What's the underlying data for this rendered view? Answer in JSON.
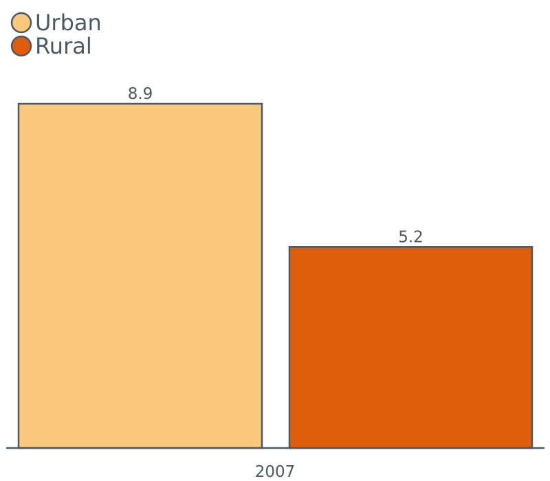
{
  "chart_data": {
    "type": "bar",
    "categories": [
      "2007"
    ],
    "series": [
      {
        "name": "Urban",
        "values": [
          8.9
        ],
        "color": "#fbc97c"
      },
      {
        "name": "Rural",
        "values": [
          5.2
        ],
        "color": "#de5d0a"
      }
    ],
    "data_labels": [
      "8.9",
      "5.2"
    ],
    "title": "",
    "xlabel": "",
    "ylabel": "",
    "ylim": [
      0,
      8.9
    ],
    "grid": false,
    "legend_position": "top-left",
    "outline_color": "#4a5868"
  }
}
